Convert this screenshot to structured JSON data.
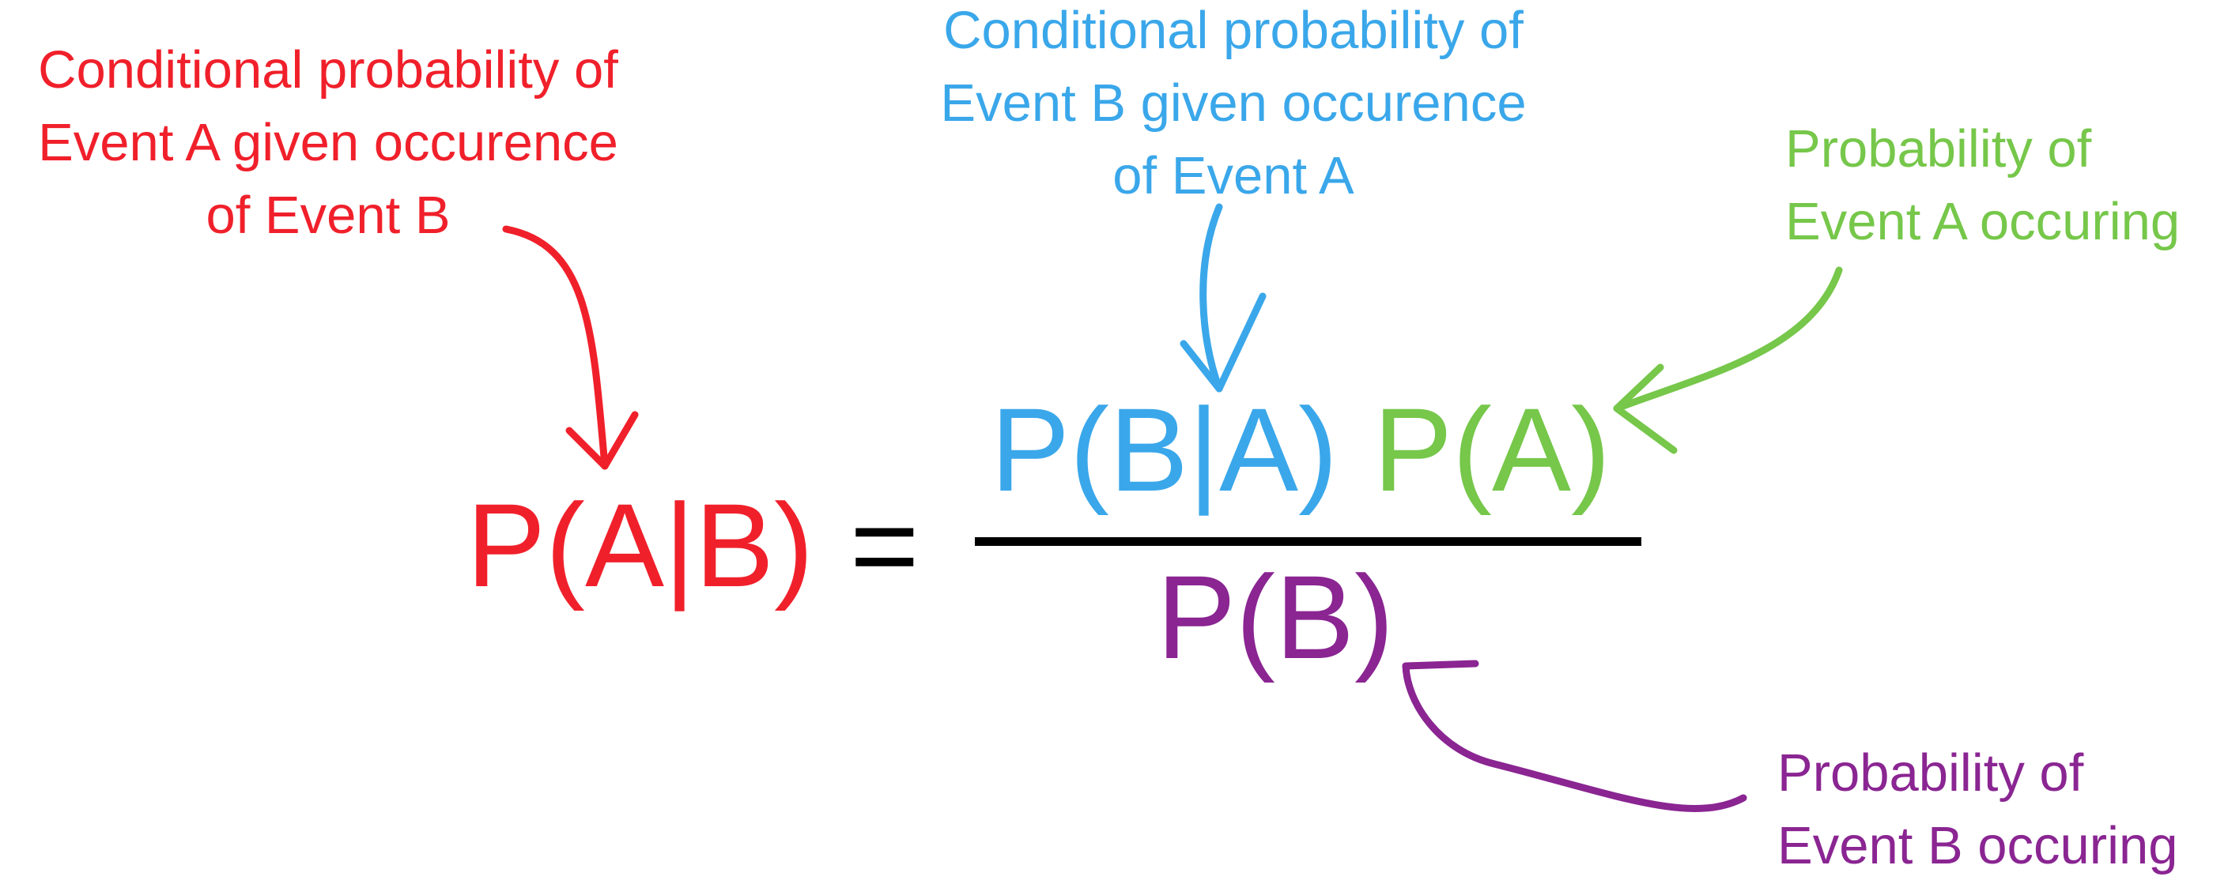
{
  "colors": {
    "red": "#f0202b",
    "blue": "#3aa7ea",
    "green": "#76c74a",
    "purple": "#8a2592",
    "black": "#000000"
  },
  "equation": {
    "lhs": "P(A|B)",
    "equals": "=",
    "numerator_likelihood": "P(B|A)",
    "numerator_prior": "P(A)",
    "denominator": "P(B)"
  },
  "annotations": {
    "posterior": {
      "lines": [
        "Conditional probability of",
        "Event A given occurence",
        "of Event B"
      ]
    },
    "likelihood": {
      "lines": [
        "Conditional probability of",
        "Event B given occurence",
        "of Event A"
      ]
    },
    "prior": {
      "lines": [
        "Probability of",
        "Event A occuring"
      ]
    },
    "evidence": {
      "lines": [
        "Probability of",
        "Event B occuring"
      ]
    }
  }
}
